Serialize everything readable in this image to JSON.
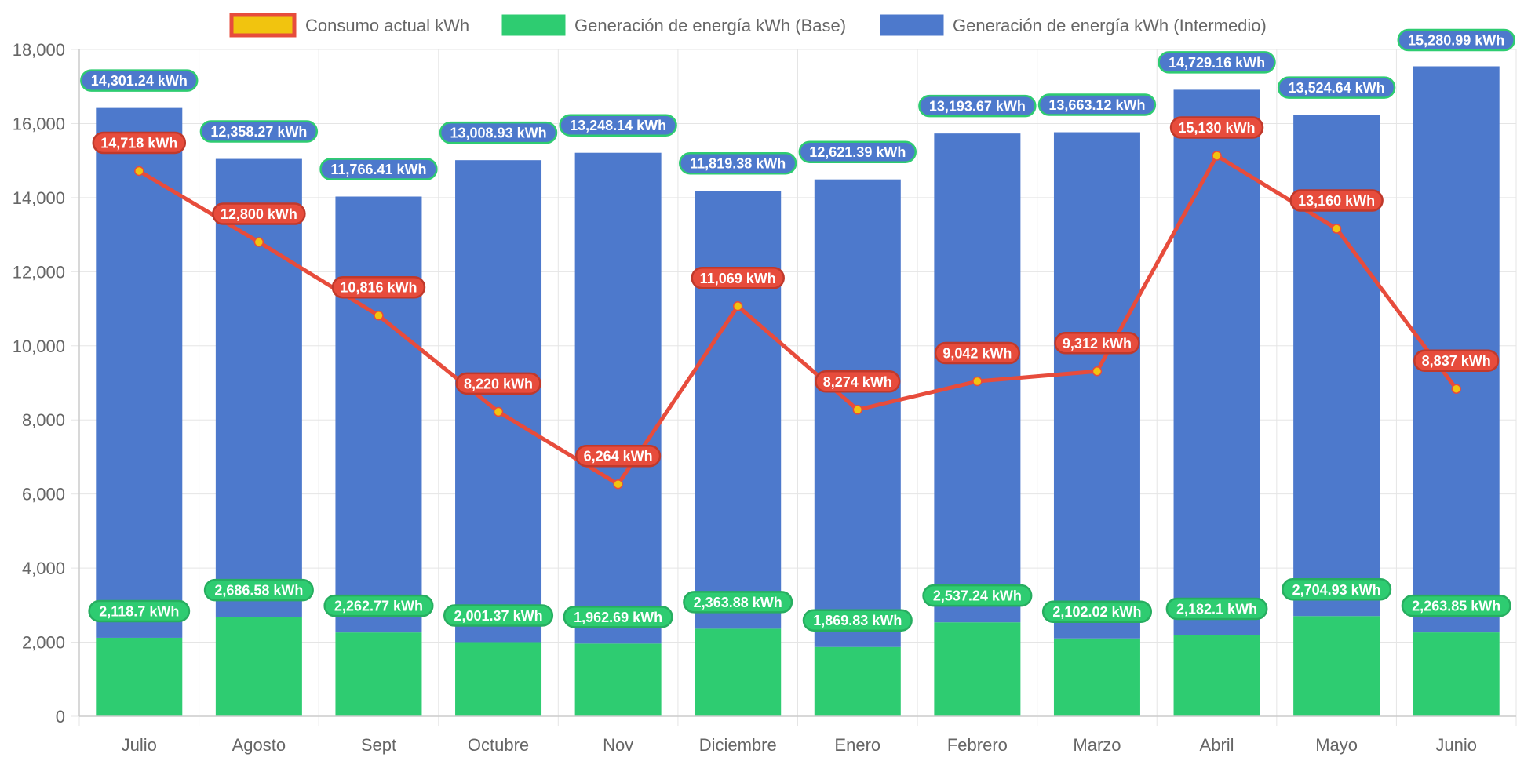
{
  "colors": {
    "consumption_line": "#e74c3c",
    "consumption_point": "#f1c40f",
    "base": "#2ecc71",
    "intermediate": "#4d79cc",
    "grid": "#e5e5e5",
    "text": "#666666"
  },
  "legend": [
    {
      "label": "Consumo actual kWh",
      "color": "#f1c40f",
      "border": "#e74c3c"
    },
    {
      "label": "Generación de energía kWh (Base)",
      "color": "#2ecc71",
      "border": "#2ecc71"
    },
    {
      "label": "Generación de energía kWh (Intermedio)",
      "color": "#4d79cc",
      "border": "#4d79cc"
    }
  ],
  "chart_data": {
    "type": "bar",
    "stacked": true,
    "legend_position": "top",
    "grid": true,
    "categories": [
      "Julio",
      "Agosto",
      "Sept",
      "Octubre",
      "Nov",
      "Diciembre",
      "Enero",
      "Febrero",
      "Marzo",
      "Abril",
      "Mayo",
      "Junio"
    ],
    "ylim": [
      0,
      18000
    ],
    "yticks": [
      0,
      2000,
      4000,
      6000,
      8000,
      10000,
      12000,
      14000,
      16000,
      18000
    ],
    "ytick_labels": [
      "0",
      "2,000",
      "4,000",
      "6,000",
      "8,000",
      "10,000",
      "12,000",
      "14,000",
      "16,000",
      "18,000"
    ],
    "series": [
      {
        "name": "Generación de energía kWh (Base)",
        "type": "bar",
        "values": [
          2118.7,
          2686.58,
          2262.77,
          2001.37,
          1962.69,
          2363.88,
          1869.83,
          2537.24,
          2102.02,
          2182.1,
          2704.93,
          2263.85
        ],
        "labels": [
          "2,118.7 kWh",
          "2,686.58 kWh",
          "2,262.77 kWh",
          "2,001.37 kWh",
          "1,962.69 kWh",
          "2,363.88 kWh",
          "1,869.83 kWh",
          "2,537.24 kWh",
          "2,102.02 kWh",
          "2,182.1 kWh",
          "2,704.93 kWh",
          "2,263.85 kWh"
        ]
      },
      {
        "name": "Generación de energía kWh (Intermedio)",
        "type": "bar",
        "values": [
          14301.24,
          12358.27,
          11766.41,
          13008.93,
          13248.14,
          11819.38,
          12621.39,
          13193.67,
          13663.12,
          14729.16,
          13524.64,
          15280.99
        ],
        "labels": [
          "14,301.24 kWh",
          "12,358.27 kWh",
          "11,766.41 kWh",
          "13,008.93 kWh",
          "13,248.14 kWh",
          "11,819.38 kWh",
          "12,621.39 kWh",
          "13,193.67 kWh",
          "13,663.12 kWh",
          "14,729.16 kWh",
          "13,524.64 kWh",
          "15,280.99 kWh"
        ]
      },
      {
        "name": "Consumo actual kWh",
        "type": "line",
        "values": [
          14718,
          12800,
          10816,
          8220,
          6264,
          11069,
          8274,
          9042,
          9312,
          15130,
          13160,
          8837
        ],
        "labels": [
          "14,718 kWh",
          "12,800 kWh",
          "10,816 kWh",
          "8,220 kWh",
          "6,264 kWh",
          "11,069 kWh",
          "8,274 kWh",
          "9,042 kWh",
          "9,312 kWh",
          "15,130 kWh",
          "13,160 kWh",
          "8,837 kWh"
        ]
      }
    ]
  }
}
